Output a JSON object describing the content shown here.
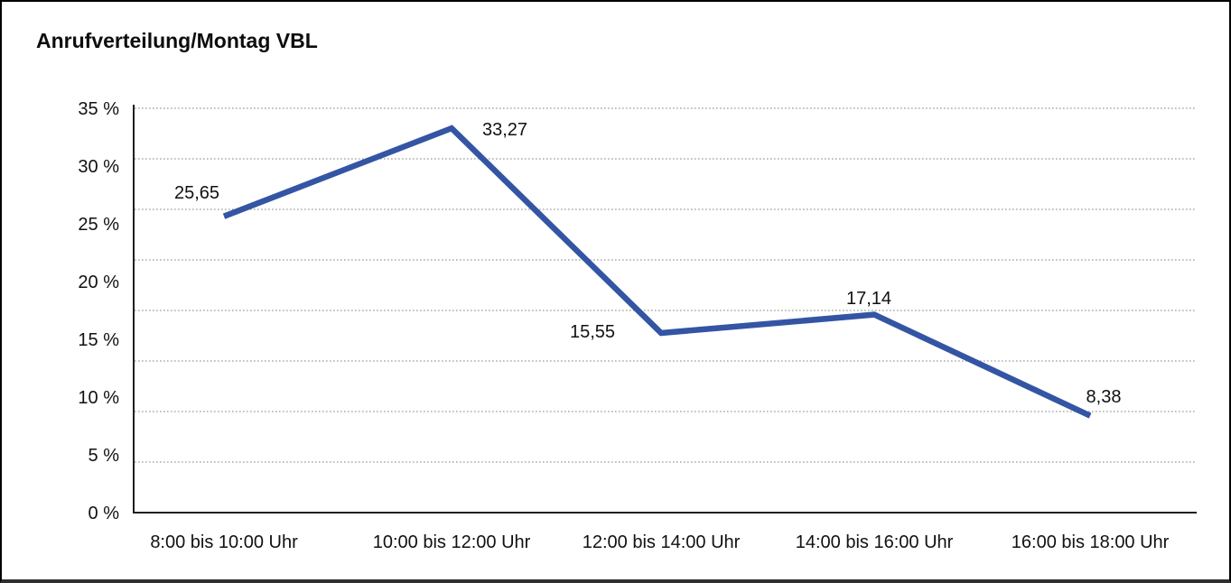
{
  "window": {
    "background_color": "#ffffff",
    "border_color": "#000000"
  },
  "chart_data": {
    "type": "line",
    "title": "Anrufverteilung/Montag VBL",
    "categories": [
      "8:00 bis 10:00 Uhr",
      "10:00 bis 12:00 Uhr",
      "12:00 bis 14:00 Uhr",
      "14:00 bis 16:00 Uhr",
      "16:00 bis 18:00 Uhr"
    ],
    "values": [
      25.65,
      33.27,
      15.55,
      17.14,
      8.38
    ],
    "value_labels": [
      "25,65",
      "33,27",
      "15,55",
      "17,14",
      "8,38"
    ],
    "xlabel": "",
    "ylabel": "",
    "ylim": [
      0,
      35
    ],
    "ytick_labels": [
      "0 %",
      "5 %",
      "10 %",
      "15 %",
      "20 %",
      "25 %",
      "30 %",
      "35 %"
    ],
    "grid": "horizontal-dotted",
    "legend_position": "none",
    "line_color": "#3455a4",
    "grid_color": "#9a9a9a",
    "axis_color": "#1f1f1f",
    "text_color": "#111111"
  }
}
